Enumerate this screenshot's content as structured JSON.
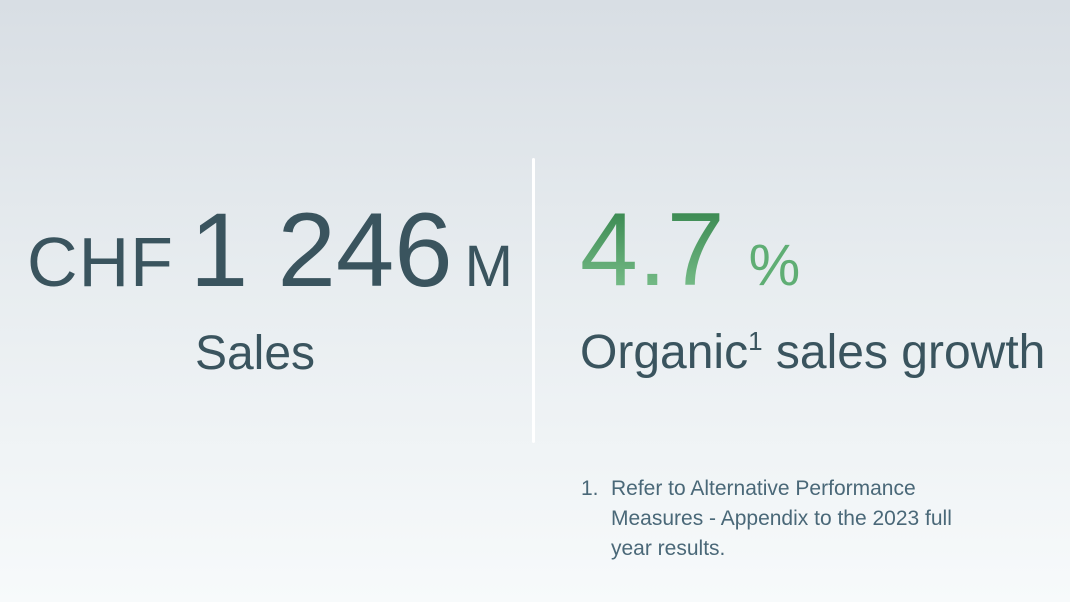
{
  "colors": {
    "bg_top": "#d8dee4",
    "bg_mid": "#e8edf0",
    "bg_bottom": "#f7fafb",
    "dark": "#3a545e",
    "footnote": "#4a6878",
    "green_top": "#38874f",
    "green_bottom": "#7cc18d",
    "percent_green": "#5fae74",
    "divider": "#ffffff"
  },
  "stats": {
    "sales": {
      "currency": "CHF",
      "value": "1 246",
      "unit": "M",
      "label": "Sales"
    },
    "growth": {
      "value": "4.7",
      "unit": "%",
      "label_prefix": "Organic",
      "label_superscript": "1",
      "label_suffix": " sales growth"
    }
  },
  "footnote": {
    "marker": "1.",
    "lines": {
      "line1": "Refer to Alternative Performance",
      "line2": "Measures - Appendix to the 2023 full",
      "line3": "year results."
    }
  }
}
